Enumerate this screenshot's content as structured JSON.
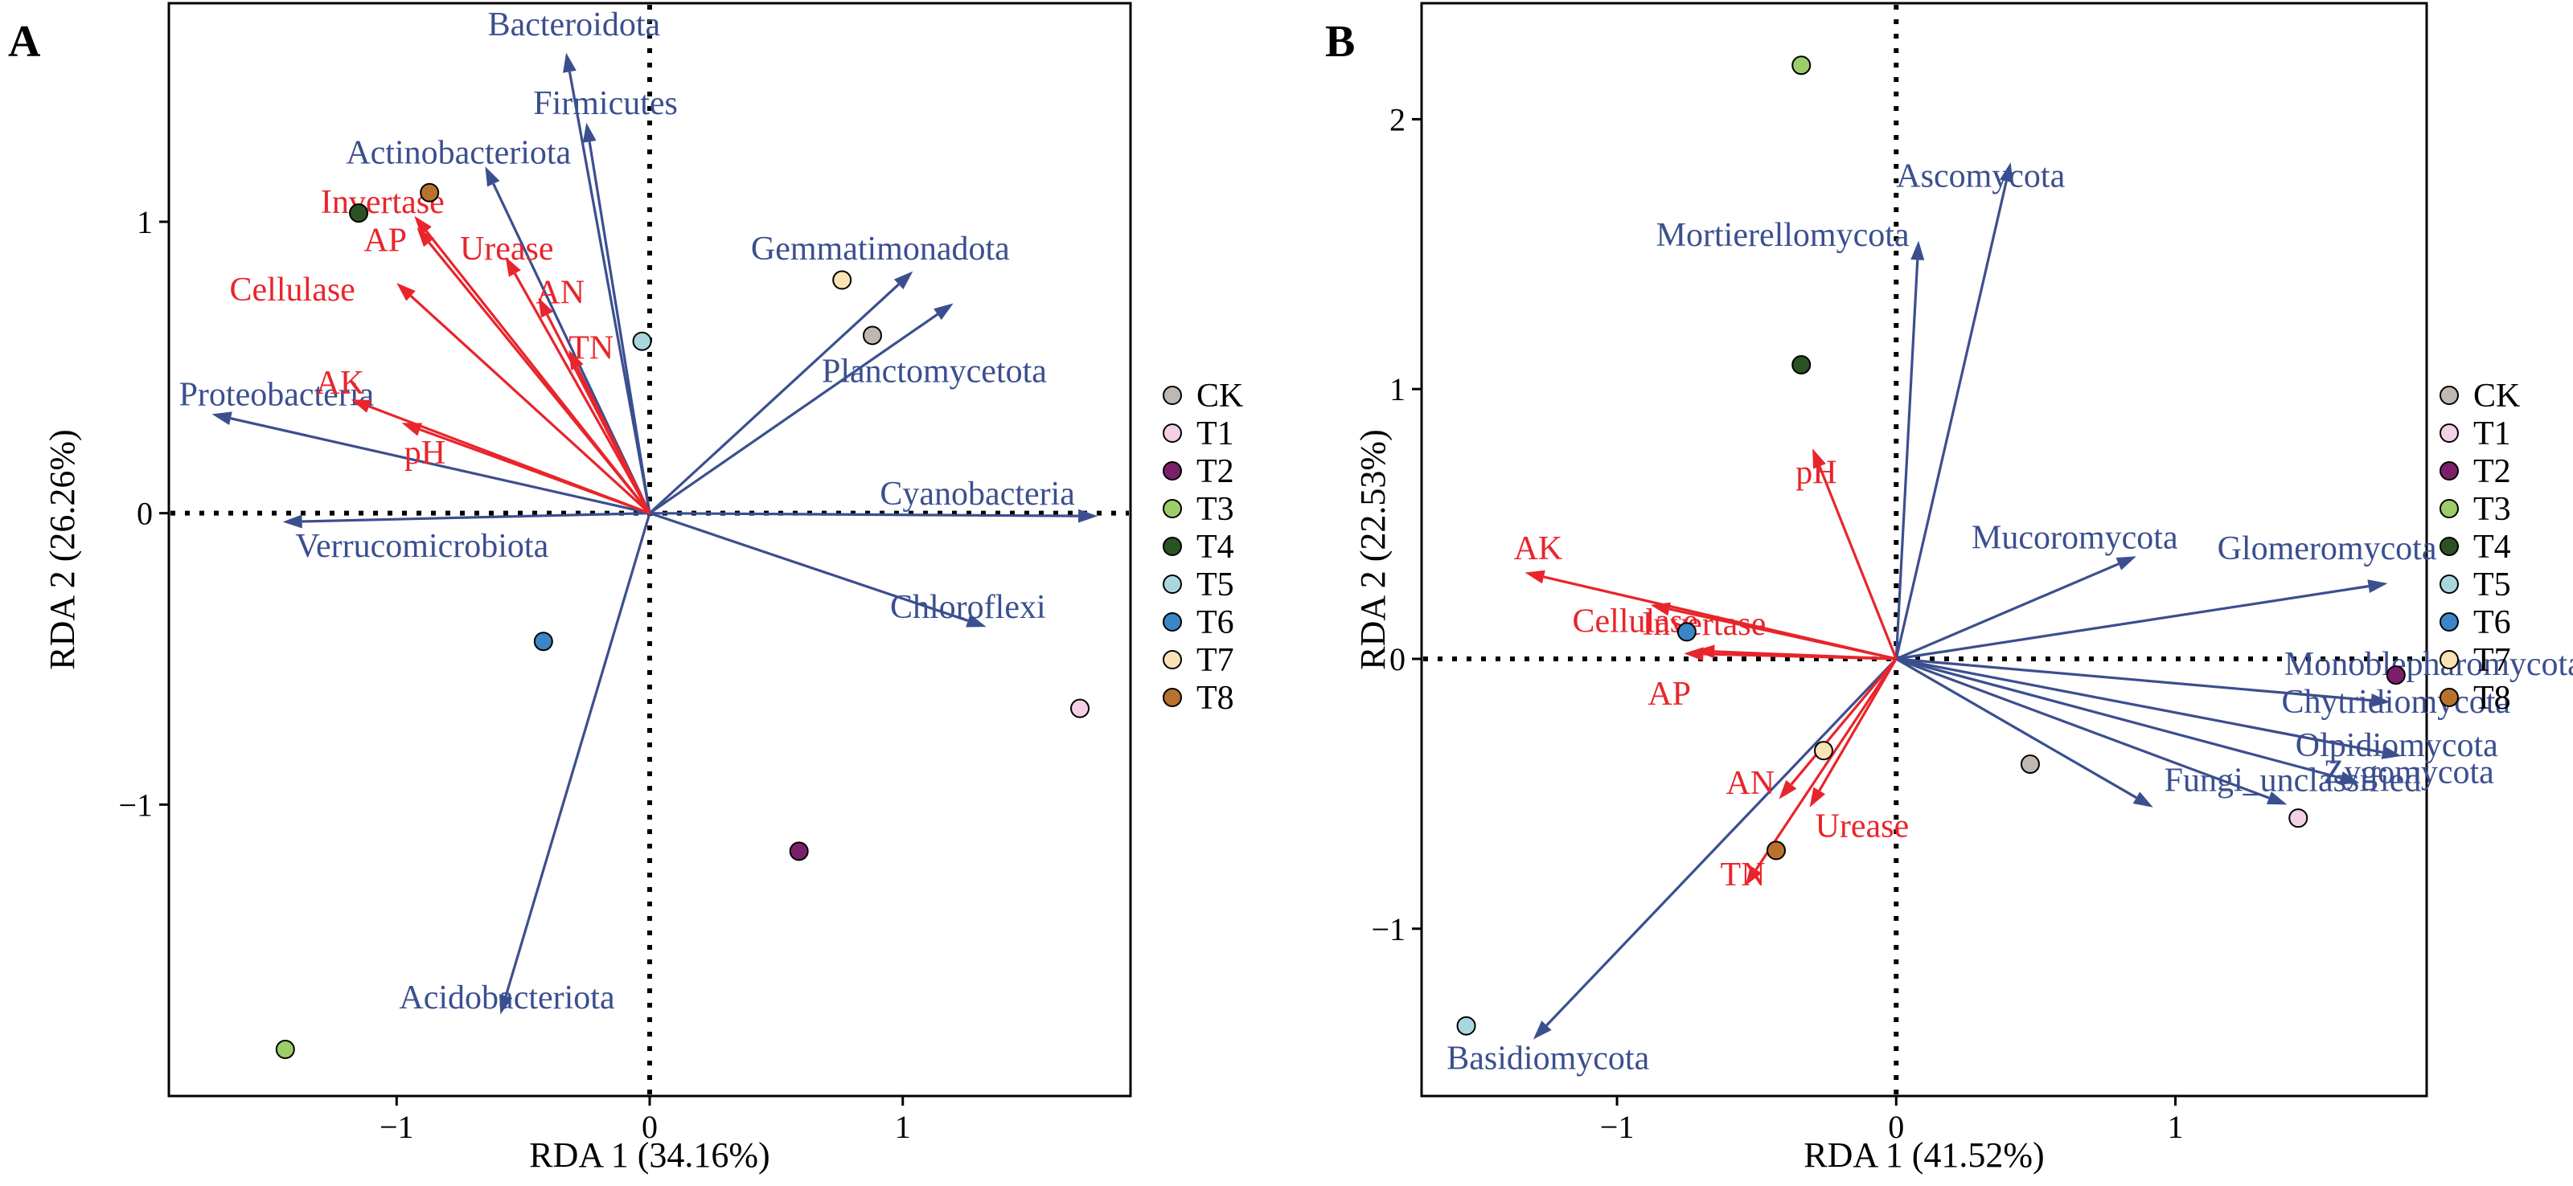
{
  "chart_data": [
    {
      "panel": "A",
      "type": "scatter",
      "xlabel": "RDA 1 (34.16%)",
      "ylabel": "RDA 2 (26.26%)",
      "xlim": [
        -1.9,
        1.9
      ],
      "ylim": [
        -2.0,
        1.75
      ],
      "xticks": [
        -1,
        0,
        1
      ],
      "yticks": [
        -1,
        0,
        1
      ],
      "grid": false,
      "reference_lines": "dotted at x=0 and y=0",
      "samples": [
        {
          "name": "CK",
          "x": 0.88,
          "y": 0.61
        },
        {
          "name": "T1",
          "x": 1.7,
          "y": -0.67
        },
        {
          "name": "T2",
          "x": 0.59,
          "y": -1.16
        },
        {
          "name": "T3",
          "x": -1.44,
          "y": -1.84
        },
        {
          "name": "T4",
          "x": -1.15,
          "y": 1.03
        },
        {
          "name": "T5",
          "x": -0.03,
          "y": 0.59
        },
        {
          "name": "T6",
          "x": -0.42,
          "y": -0.44
        },
        {
          "name": "T7",
          "x": 0.76,
          "y": 0.8
        },
        {
          "name": "T8",
          "x": -0.87,
          "y": 1.1
        }
      ],
      "taxa_vectors": [
        {
          "name": "Bacteroidota",
          "x": -0.33,
          "y": 1.58,
          "label_x": -0.64,
          "label_y": 1.64
        },
        {
          "name": "Firmicutes",
          "x": -0.25,
          "y": 1.34,
          "label_x": -0.46,
          "label_y": 1.37
        },
        {
          "name": "Actinobacteriota",
          "x": -0.65,
          "y": 1.19,
          "label_x": -1.2,
          "label_y": 1.2
        },
        {
          "name": "Gemmatimonadota",
          "x": 1.04,
          "y": 0.83,
          "label_x": 0.4,
          "label_y": 0.87
        },
        {
          "name": "Planctomycetota",
          "x": 1.2,
          "y": 0.72,
          "label_x": 0.68,
          "label_y": 0.45
        },
        {
          "name": "Proteobacteria",
          "x": -1.73,
          "y": 0.34,
          "label_x": -1.86,
          "label_y": 0.37
        },
        {
          "name": "Cyanobacteria",
          "x": 1.77,
          "y": -0.01,
          "label_x": 0.91,
          "label_y": 0.03
        },
        {
          "name": "Verrucomicrobiota",
          "x": -1.45,
          "y": -0.03,
          "label_x": -1.4,
          "label_y": -0.15
        },
        {
          "name": "Chloroflexi",
          "x": 1.33,
          "y": -0.39,
          "label_x": 0.95,
          "label_y": -0.36
        },
        {
          "name": "Acidobacteriota",
          "x": -0.59,
          "y": -1.72,
          "label_x": -0.99,
          "label_y": -1.7
        }
      ],
      "env_vectors": [
        {
          "name": "Invertase",
          "x": -0.93,
          "y": 1.02,
          "label_x": -1.3,
          "label_y": 1.03
        },
        {
          "name": "AP",
          "x": -0.92,
          "y": 0.98,
          "label_x": -1.13,
          "label_y": 0.9
        },
        {
          "name": "Urease",
          "x": -0.57,
          "y": 0.88,
          "label_x": -0.75,
          "label_y": 0.87
        },
        {
          "name": "Cellulase",
          "x": -1.0,
          "y": 0.79,
          "label_x": -1.66,
          "label_y": 0.73
        },
        {
          "name": "AN",
          "x": -0.44,
          "y": 0.74,
          "label_x": -0.45,
          "label_y": 0.72
        },
        {
          "name": "TN",
          "x": -0.32,
          "y": 0.56,
          "label_x": -0.32,
          "label_y": 0.53
        },
        {
          "name": "AK",
          "x": -1.18,
          "y": 0.39,
          "label_x": -1.32,
          "label_y": 0.41
        },
        {
          "name": "pH",
          "x": -0.98,
          "y": 0.31,
          "label_x": -0.97,
          "label_y": 0.17
        }
      ]
    },
    {
      "panel": "B",
      "type": "scatter",
      "xlabel": "RDA 1 (41.52%)",
      "ylabel": "RDA 2 (22.53%)",
      "xlim": [
        -1.7,
        1.9
      ],
      "ylim": [
        -1.62,
        2.43
      ],
      "xticks": [
        -1,
        0,
        1
      ],
      "yticks": [
        -1,
        0,
        1,
        2
      ],
      "grid": false,
      "reference_lines": "dotted at x=0 and y=0",
      "samples": [
        {
          "name": "CK",
          "x": 0.48,
          "y": -0.39
        },
        {
          "name": "T1",
          "x": 1.44,
          "y": -0.59
        },
        {
          "name": "T2",
          "x": 1.79,
          "y": -0.06
        },
        {
          "name": "T3",
          "x": -0.34,
          "y": 2.2
        },
        {
          "name": "T4",
          "x": -0.34,
          "y": 1.09
        },
        {
          "name": "T5",
          "x": -1.54,
          "y": -1.36
        },
        {
          "name": "T6",
          "x": -0.75,
          "y": 0.1
        },
        {
          "name": "T7",
          "x": -0.26,
          "y": -0.34
        },
        {
          "name": "T8",
          "x": -0.43,
          "y": -0.71
        }
      ],
      "taxa_vectors": [
        {
          "name": "Ascomycota",
          "x": 0.41,
          "y": 1.84,
          "label_x": 0.0,
          "label_y": 1.75
        },
        {
          "name": "Mortierellomycota",
          "x": 0.08,
          "y": 1.55,
          "label_x": -0.86,
          "label_y": 1.53
        },
        {
          "name": "Mucoromycota",
          "x": 0.86,
          "y": 0.38,
          "label_x": 0.27,
          "label_y": 0.41
        },
        {
          "name": "Glomeromycota",
          "x": 1.76,
          "y": 0.28,
          "label_x": 1.15,
          "label_y": 0.37
        },
        {
          "name": "Monoblepharomycota",
          "x": 1.77,
          "y": -0.16,
          "label_x": 1.39,
          "label_y": -0.06
        },
        {
          "name": "Chytridiomycota",
          "x": 1.81,
          "y": -0.36,
          "label_x": 1.38,
          "label_y": -0.2
        },
        {
          "name": "Olpidiomycota",
          "x": 1.66,
          "y": -0.46,
          "label_x": 1.43,
          "label_y": -0.36
        },
        {
          "name": "Zygomycota",
          "x": 1.4,
          "y": -0.54,
          "label_x": 1.53,
          "label_y": -0.46
        },
        {
          "name": "Fungi_unclassified",
          "x": 0.92,
          "y": -0.55,
          "label_x": 0.96,
          "label_y": -0.49
        },
        {
          "name": "Basidiomycota",
          "x": -1.3,
          "y": -1.41,
          "label_x": -1.61,
          "label_y": -1.52
        }
      ],
      "env_vectors": [
        {
          "name": "pH",
          "x": -0.3,
          "y": 0.78,
          "label_x": -0.36,
          "label_y": 0.65
        },
        {
          "name": "AK",
          "x": -1.33,
          "y": 0.32,
          "label_x": -1.37,
          "label_y": 0.37
        },
        {
          "name": "Cellulase",
          "x": -0.88,
          "y": 0.2,
          "label_x": -1.16,
          "label_y": 0.1
        },
        {
          "name": "Invertase",
          "x": -0.72,
          "y": 0.03,
          "label_x": -0.91,
          "label_y": 0.09
        },
        {
          "name": "AP",
          "x": -0.76,
          "y": 0.02,
          "label_x": -0.89,
          "label_y": -0.17
        },
        {
          "name": "AN",
          "x": -0.42,
          "y": -0.52,
          "label_x": -0.61,
          "label_y": -0.5
        },
        {
          "name": "Urease",
          "x": -0.31,
          "y": -0.55,
          "label_x": -0.29,
          "label_y": -0.66
        },
        {
          "name": "TN",
          "x": -0.54,
          "y": -0.84,
          "label_x": -0.63,
          "label_y": -0.84
        }
      ]
    }
  ],
  "legend": {
    "items": [
      {
        "label": "CK",
        "color": "#bfb7b1"
      },
      {
        "label": "T1",
        "color": "#f3d0e6"
      },
      {
        "label": "T2",
        "color": "#7b1f6b"
      },
      {
        "label": "T3",
        "color": "#9ccd6a"
      },
      {
        "label": "T4",
        "color": "#2b5222"
      },
      {
        "label": "T5",
        "color": "#a8d8de"
      },
      {
        "label": "T6",
        "color": "#3a86c8"
      },
      {
        "label": "T7",
        "color": "#f9e3b4"
      },
      {
        "label": "T8",
        "color": "#b8722c"
      }
    ]
  },
  "colors": {
    "taxa": "#3b4f8f",
    "env": "#e8252b"
  }
}
